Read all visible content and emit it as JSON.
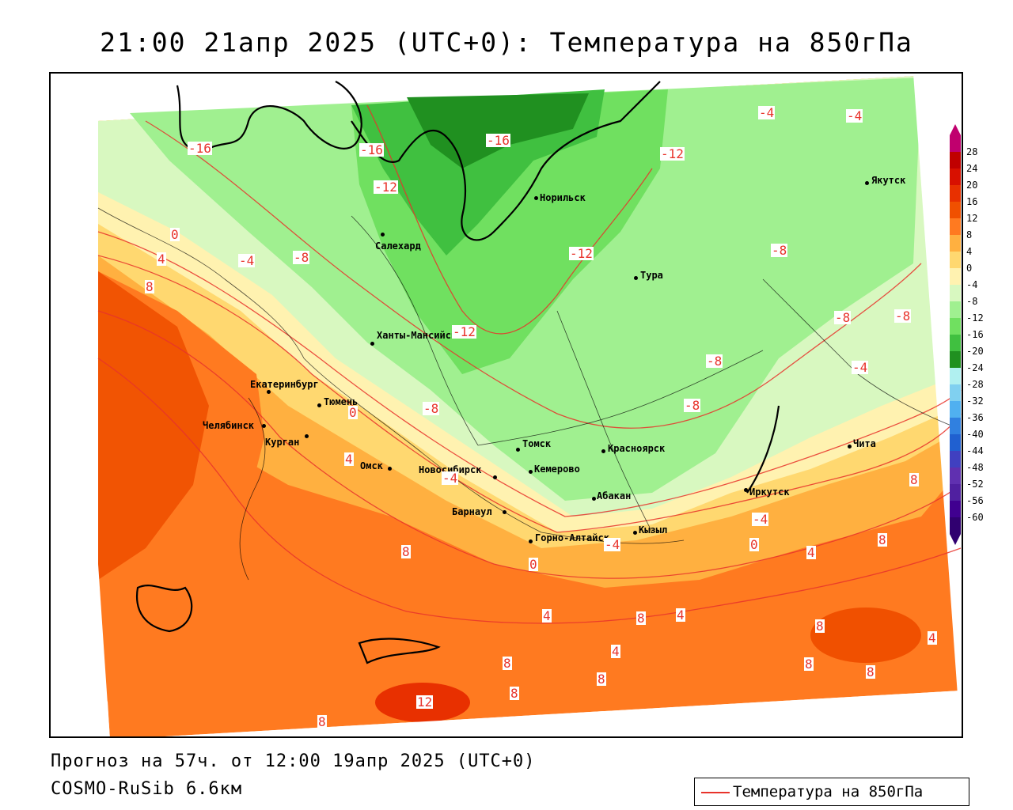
{
  "title": "21:00 21апр 2025 (UTC+0): Температура на 850гПа",
  "footer": {
    "forecast": "Прогноз на 57ч. от 12:00 19апр 2025 (UTC+0)",
    "model": "COSMO-RuSib 6.6км"
  },
  "legend": {
    "label": "Температура на 850гПа",
    "line_color": "#e8332b"
  },
  "colorbar": {
    "labels": [
      "28",
      "24",
      "20",
      "16",
      "12",
      "8",
      "4",
      "0",
      "-4",
      "-8",
      "-12",
      "-16",
      "-20",
      "-24",
      "-28",
      "-32",
      "-36",
      "-40",
      "-44",
      "-48",
      "-52",
      "-56",
      "-60"
    ],
    "colors": [
      "#c0006e",
      "#c00000",
      "#d81000",
      "#e83000",
      "#f05000",
      "#ff7a20",
      "#ffb040",
      "#ffd870",
      "#fff2b0",
      "#d8f8c0",
      "#a0f090",
      "#70e060",
      "#40c040",
      "#209020",
      "#b0f0f0",
      "#80d0f0",
      "#50b0f0",
      "#3080e0",
      "#2060d0",
      "#4040c0",
      "#6030b0",
      "#5020a0",
      "#400090",
      "#300070"
    ]
  },
  "cities": [
    {
      "name": "Якутск"
    },
    {
      "name": "Норильск"
    },
    {
      "name": "Салехард"
    },
    {
      "name": "Тура"
    },
    {
      "name": "Ханты-Мансийск"
    },
    {
      "name": "Екатеринбург"
    },
    {
      "name": "Тюмень"
    },
    {
      "name": "Челябинск"
    },
    {
      "name": "Курган"
    },
    {
      "name": "Омск"
    },
    {
      "name": "Новосибирск"
    },
    {
      "name": "Томск"
    },
    {
      "name": "Красноярск"
    },
    {
      "name": "Кемерово"
    },
    {
      "name": "Барнаул"
    },
    {
      "name": "Абакан"
    },
    {
      "name": "Горно-Алтайск"
    },
    {
      "name": "Кызыл"
    },
    {
      "name": "Иркутск"
    },
    {
      "name": "Чита"
    }
  ],
  "isotherm_labels": [
    "-16",
    "-16",
    "-16",
    "-12",
    "-12",
    "-12",
    "-4",
    "-4",
    "-8",
    "-8",
    "-8",
    "-8",
    "-8",
    "-8",
    "-4",
    "0",
    "4",
    "8",
    "-4",
    "-8",
    "-12",
    "4",
    "0",
    "-4",
    "0",
    "4",
    "8",
    "8",
    "4",
    "0",
    "4",
    "8",
    "8",
    "8",
    "8",
    "4",
    "8",
    "8",
    "12",
    "8",
    "8",
    "8",
    "-4",
    "4",
    "-4"
  ]
}
